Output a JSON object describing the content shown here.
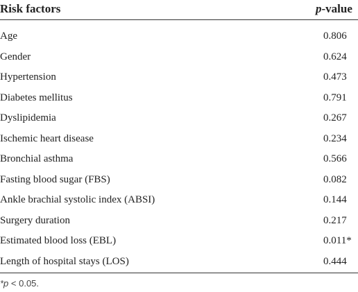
{
  "table": {
    "header": [
      "Risk factors",
      "p-value"
    ],
    "rows": [
      [
        "Age",
        "0.806"
      ],
      [
        "Gender",
        "0.624"
      ],
      [
        "Hypertension",
        "0.473"
      ],
      [
        "Diabetes mellitus",
        "0.791"
      ],
      [
        "Dyslipidemia",
        "0.267"
      ],
      [
        "Ischemic heart disease",
        "0.234"
      ],
      [
        "Bronchial asthma",
        "0.566"
      ],
      [
        "Fasting blood sugar (FBS)",
        "0.082"
      ],
      [
        "Ankle brachial systolic index (ABSI)",
        "0.144"
      ],
      [
        "Surgery duration",
        "0.217"
      ],
      [
        "Estimated blood loss (EBL)",
        "0.011*"
      ],
      [
        "Length of hospital stays (LOS)",
        "0.444"
      ]
    ],
    "footnote": "*p < 0.05."
  }
}
